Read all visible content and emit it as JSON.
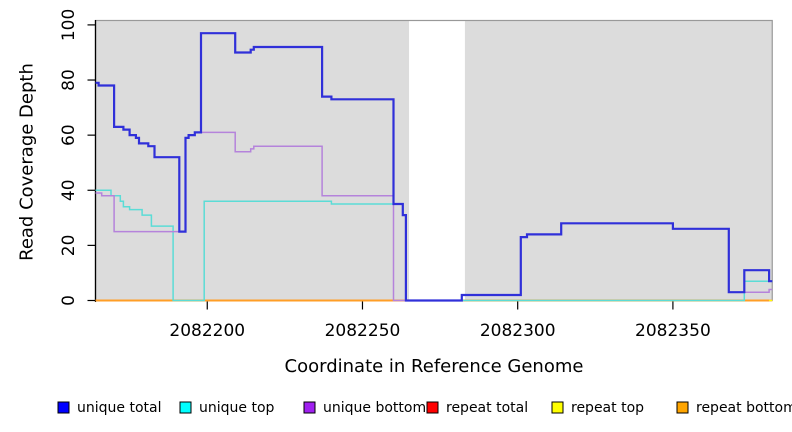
{
  "chart_data": {
    "type": "line",
    "subtype": "step",
    "title": "",
    "xlabel": "Coordinate in Reference Genome",
    "ylabel": "Read Coverage Depth",
    "xlim": [
      2082164,
      2082382
    ],
    "ylim": [
      0,
      101.6
    ],
    "x_ticks": [
      2082200,
      2082250,
      2082300,
      2082350
    ],
    "y_ticks": [
      0,
      20,
      40,
      60,
      80,
      100
    ],
    "grid": false,
    "legend_position": "bottom",
    "page_background": "#ffffff",
    "plot_background": "#dcdcdc",
    "box_border_color": "#999999",
    "axis_color": "#000000",
    "text_color": "#000000",
    "gap_region": {
      "x_start": 2082265,
      "x_end": 2082283,
      "color": "#ffffff"
    },
    "series": [
      {
        "name": "unique total",
        "legend_color": "#0000ff",
        "line_color": "#3030d9",
        "line_width": 2.2,
        "x_end": 2082382,
        "points": [
          [
            2082164,
            79
          ],
          [
            2082165,
            78
          ],
          [
            2082170,
            63
          ],
          [
            2082173,
            62
          ],
          [
            2082175,
            60
          ],
          [
            2082177,
            59
          ],
          [
            2082178,
            57
          ],
          [
            2082181,
            56
          ],
          [
            2082183,
            52
          ],
          [
            2082191,
            25
          ],
          [
            2082193,
            59
          ],
          [
            2082194,
            60
          ],
          [
            2082196,
            61
          ],
          [
            2082198,
            97
          ],
          [
            2082209,
            90
          ],
          [
            2082214,
            91
          ],
          [
            2082215,
            92
          ],
          [
            2082237,
            74
          ],
          [
            2082240,
            73
          ],
          [
            2082260,
            35
          ],
          [
            2082263,
            31
          ],
          [
            2082264,
            0
          ],
          [
            2082282,
            2
          ],
          [
            2082301,
            23
          ],
          [
            2082303,
            24
          ],
          [
            2082314,
            28
          ],
          [
            2082350,
            26
          ],
          [
            2082368,
            3
          ],
          [
            2082373,
            11
          ],
          [
            2082381,
            7
          ]
        ]
      },
      {
        "name": "unique top",
        "legend_color": "#00ffff",
        "line_color": "#5bdcd6",
        "line_width": 1.5,
        "x_end": 2082382,
        "points": [
          [
            2082164,
            40
          ],
          [
            2082169,
            38
          ],
          [
            2082172,
            36
          ],
          [
            2082173,
            34
          ],
          [
            2082175,
            33
          ],
          [
            2082179,
            31
          ],
          [
            2082182,
            27
          ],
          [
            2082189,
            0
          ],
          [
            2082199,
            36
          ],
          [
            2082240,
            35
          ],
          [
            2082263,
            31
          ],
          [
            2082264,
            0
          ],
          [
            2082373,
            7
          ]
        ]
      },
      {
        "name": "unique bottom",
        "legend_color": "#a020f0",
        "line_color": "#b583db",
        "line_width": 1.5,
        "x_end": 2082382,
        "points": [
          [
            2082164,
            39
          ],
          [
            2082166,
            38
          ],
          [
            2082170,
            25
          ],
          [
            2082193,
            59
          ],
          [
            2082194,
            60
          ],
          [
            2082196,
            61
          ],
          [
            2082209,
            54
          ],
          [
            2082214,
            55
          ],
          [
            2082215,
            56
          ],
          [
            2082237,
            38
          ],
          [
            2082260,
            0
          ],
          [
            2082282,
            2
          ],
          [
            2082301,
            23
          ],
          [
            2082303,
            24
          ],
          [
            2082314,
            28
          ],
          [
            2082350,
            26
          ],
          [
            2082368,
            3
          ],
          [
            2082381,
            4
          ]
        ]
      },
      {
        "name": "repeat total",
        "legend_color": "#ff0000",
        "line_color": "#ef5f85",
        "line_width": 1.8,
        "x_end": 2082382,
        "points": [
          [
            2082164,
            0
          ]
        ]
      },
      {
        "name": "repeat top",
        "legend_color": "#ffff00",
        "line_color": "#ffff00",
        "line_width": 1.4,
        "x_end": 2082382,
        "points": [
          [
            2082164,
            0
          ]
        ]
      },
      {
        "name": "repeat bottom",
        "legend_color": "#ffa500",
        "line_color": "#ff9e26",
        "line_width": 2,
        "x_end": 2082381,
        "points": [
          [
            2082164,
            0
          ]
        ]
      }
    ],
    "draw_order": [
      3,
      4,
      5,
      1,
      2,
      0
    ],
    "legend_swatch_x": [
      58,
      180,
      304,
      427,
      552,
      677
    ]
  }
}
